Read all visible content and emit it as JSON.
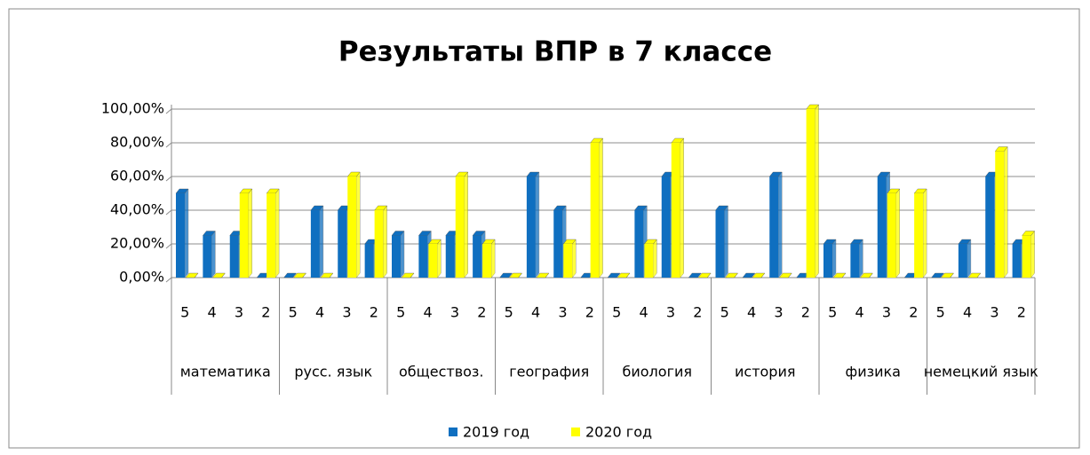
{
  "chart_data": {
    "type": "bar",
    "title": "Результаты ВПР в 7 классе",
    "categories": [
      "5",
      "4",
      "3",
      "2",
      "5",
      "4",
      "3",
      "2",
      "5",
      "4",
      "3",
      "2",
      "5",
      "4",
      "3",
      "2",
      "5",
      "4",
      "3",
      "2",
      "5",
      "4",
      "3",
      "2",
      "5",
      "4",
      "3",
      "2",
      "5",
      "4",
      "3",
      "2"
    ],
    "groups": [
      "математика",
      "русс.  язык",
      "обществоз.",
      "география",
      "биология",
      "история",
      "физика",
      "немецкий язык"
    ],
    "series": [
      {
        "name": "2019 год",
        "color": "#0f6fc0",
        "values": [
          50,
          25,
          25,
          0,
          0,
          40,
          40,
          20,
          25,
          25,
          25,
          25,
          0,
          60,
          40,
          0,
          0,
          40,
          60,
          0,
          40,
          0,
          60,
          0,
          20,
          20,
          60,
          0,
          0,
          20,
          60,
          20
        ]
      },
      {
        "name": "2020 год",
        "color": "#ffff00",
        "values": [
          0,
          0,
          50,
          50,
          0,
          0,
          60,
          40,
          0,
          20,
          60,
          20,
          0,
          0,
          20,
          80,
          0,
          20,
          80,
          0,
          0,
          0,
          0,
          100,
          0,
          0,
          50,
          50,
          0,
          0,
          75,
          25
        ]
      }
    ],
    "ylim": [
      0,
      100
    ],
    "yticks": [
      {
        "value": 0,
        "label": "0,00%"
      },
      {
        "value": 20,
        "label": "20,00%"
      },
      {
        "value": 40,
        "label": "40,00%"
      },
      {
        "value": 60,
        "label": "60,00%"
      },
      {
        "value": 80,
        "label": "80,00%"
      },
      {
        "value": 100,
        "label": "100,00%"
      }
    ],
    "grid": true,
    "legend": "bottom"
  }
}
